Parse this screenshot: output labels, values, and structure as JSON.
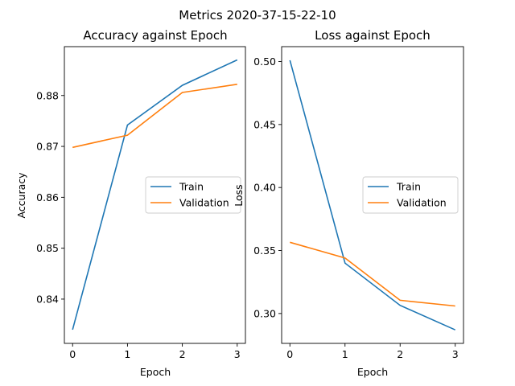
{
  "figure": {
    "suptitle": "Metrics 2020-37-15-22-10"
  },
  "chart_data": [
    {
      "type": "line",
      "title": "Accuracy against Epoch",
      "xlabel": "Epoch",
      "ylabel": "Accuracy",
      "x": [
        0,
        1,
        2,
        3
      ],
      "xticks": [
        "0",
        "1",
        "2",
        "3"
      ],
      "yticks": [
        "0.84",
        "0.85",
        "0.86",
        "0.87",
        "0.88"
      ],
      "ytick_values": [
        0.84,
        0.85,
        0.86,
        0.87,
        0.88
      ],
      "xlim": [
        -0.15,
        3.15
      ],
      "ylim": [
        0.8313,
        0.8896
      ],
      "grid": false,
      "legend": "center-right",
      "series": [
        {
          "name": "Train",
          "color": "#1f77b4",
          "values": [
            0.834,
            0.8742,
            0.882,
            0.887
          ]
        },
        {
          "name": "Validation",
          "color": "#ff7f0e",
          "values": [
            0.8698,
            0.8722,
            0.8806,
            0.8822
          ]
        }
      ]
    },
    {
      "type": "line",
      "title": "Loss against Epoch",
      "xlabel": "Epoch",
      "ylabel": "Loss",
      "x": [
        0,
        1,
        2,
        3
      ],
      "xticks": [
        "0",
        "1",
        "2",
        "3"
      ],
      "yticks": [
        "0.30",
        "0.35",
        "0.40",
        "0.45",
        "0.50"
      ],
      "ytick_values": [
        0.3,
        0.35,
        0.4,
        0.45,
        0.5
      ],
      "xlim": [
        -0.15,
        3.15
      ],
      "ylim": [
        0.2763,
        0.5118
      ],
      "grid": false,
      "legend": "center-right",
      "series": [
        {
          "name": "Train",
          "color": "#1f77b4",
          "values": [
            0.501,
            0.34,
            0.3065,
            0.287
          ]
        },
        {
          "name": "Validation",
          "color": "#ff7f0e",
          "values": [
            0.3565,
            0.344,
            0.3105,
            0.306
          ]
        }
      ]
    }
  ]
}
